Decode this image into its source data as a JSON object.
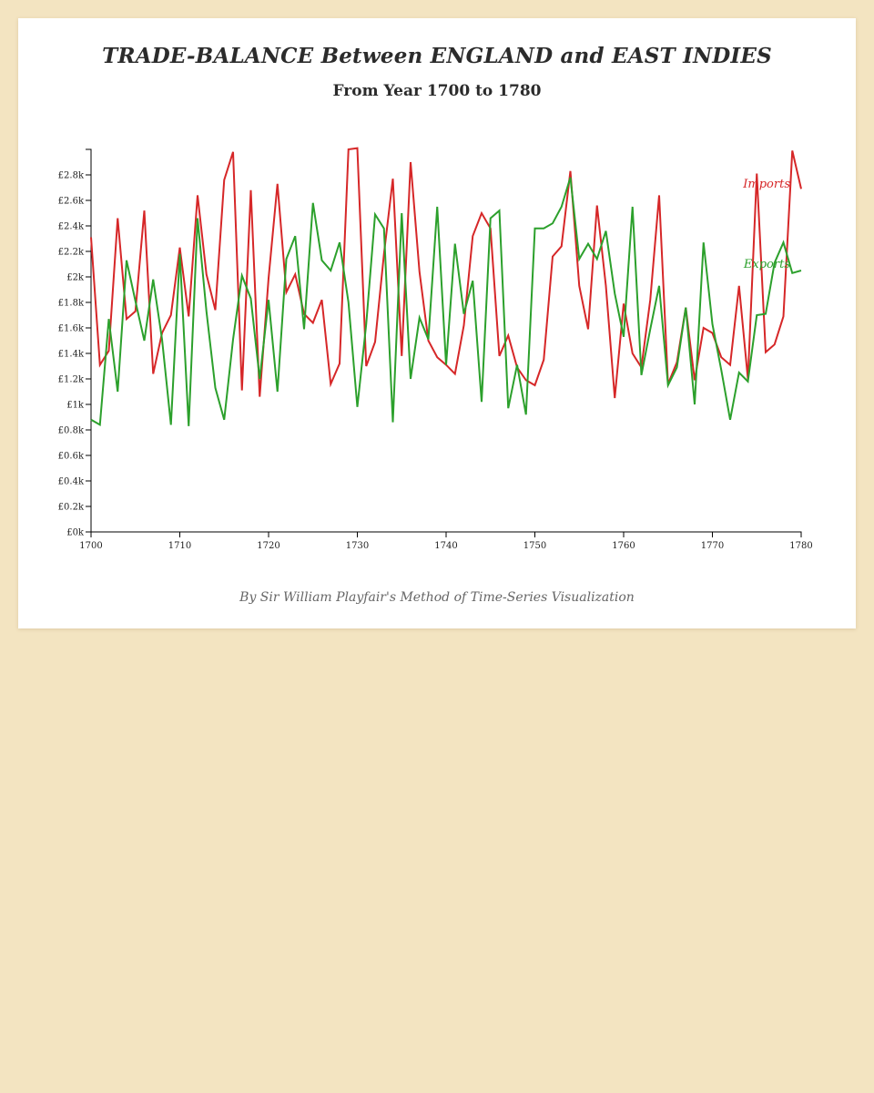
{
  "title": "TRADE-BALANCE Between ENGLAND and EAST INDIES",
  "subtitle": "From Year 1700 to 1780",
  "footer": "By Sir William Playfair's Method of Time-Series Visualization",
  "chart_data": {
    "type": "line",
    "title": "TRADE-BALANCE Between ENGLAND and EAST INDIES",
    "subtitle": "From Year 1700 to 1780",
    "xlim": [
      1700,
      1780
    ],
    "ylim": [
      0,
      3000
    ],
    "x_ticks": [
      "1700",
      "1710",
      "1720",
      "1730",
      "1740",
      "1750",
      "1760",
      "1770",
      "1780"
    ],
    "y_ticks": [
      "£0k",
      "£0.2k",
      "£0.4k",
      "£0.6k",
      "£0.8k",
      "£1k",
      "£1.2k",
      "£1.4k",
      "£1.6k",
      "£1.8k",
      "£2k",
      "£2.2k",
      "£2.4k",
      "£2.6k",
      "£2.8k"
    ],
    "grid": false,
    "legend": "inline labels at right end of lines",
    "series": [
      {
        "name": "Imports",
        "color": "#d62728",
        "x": [
          1700,
          1701,
          1702,
          1703,
          1704,
          1705,
          1706,
          1707,
          1708,
          1709,
          1710,
          1711,
          1712,
          1713,
          1714,
          1715,
          1716,
          1717,
          1718,
          1719,
          1720,
          1721,
          1722,
          1723,
          1724,
          1725,
          1726,
          1727,
          1728,
          1729,
          1730,
          1731,
          1732,
          1733,
          1734,
          1735,
          1736,
          1737,
          1738,
          1739,
          1740,
          1741,
          1742,
          1743,
          1744,
          1745,
          1746,
          1747,
          1748,
          1749,
          1750,
          1751,
          1752,
          1753,
          1754,
          1755,
          1756,
          1757,
          1758,
          1759,
          1760,
          1761,
          1762,
          1763,
          1764,
          1765,
          1766,
          1767,
          1768,
          1769,
          1770,
          1771,
          1772,
          1773,
          1774,
          1775,
          1776,
          1777,
          1778,
          1779,
          1780
        ],
        "values": [
          2310,
          1310,
          1420,
          2460,
          1670,
          1730,
          2520,
          1240,
          1560,
          1700,
          2230,
          1690,
          2640,
          2020,
          1740,
          2760,
          2980,
          1110,
          2680,
          1060,
          1990,
          2730,
          1880,
          2020,
          1710,
          1640,
          1820,
          1160,
          1320,
          3000,
          3010,
          1300,
          1490,
          2180,
          2770,
          1380,
          2900,
          2040,
          1500,
          1370,
          1310,
          1240,
          1620,
          2320,
          2500,
          2380,
          1380,
          1540,
          1290,
          1190,
          1150,
          1350,
          2160,
          2240,
          2830,
          1930,
          1590,
          2560,
          1930,
          1050,
          1790,
          1400,
          1290,
          1820,
          2640,
          1160,
          1330,
          1760,
          1190,
          1600,
          1560,
          1370,
          1310,
          1930,
          1200,
          2810,
          1410,
          1470,
          1690,
          2990,
          2690
        ]
      },
      {
        "name": "Exports",
        "color": "#2ca02c",
        "x": [
          1700,
          1701,
          1702,
          1703,
          1704,
          1705,
          1706,
          1707,
          1708,
          1709,
          1710,
          1711,
          1712,
          1713,
          1714,
          1715,
          1716,
          1717,
          1718,
          1719,
          1720,
          1721,
          1722,
          1723,
          1724,
          1725,
          1726,
          1727,
          1728,
          1729,
          1730,
          1731,
          1732,
          1733,
          1734,
          1735,
          1736,
          1737,
          1738,
          1739,
          1740,
          1741,
          1742,
          1743,
          1744,
          1745,
          1746,
          1747,
          1748,
          1749,
          1750,
          1751,
          1752,
          1753,
          1754,
          1755,
          1756,
          1757,
          1758,
          1759,
          1760,
          1761,
          1762,
          1763,
          1764,
          1765,
          1766,
          1767,
          1768,
          1769,
          1770,
          1771,
          1772,
          1773,
          1774,
          1775,
          1776,
          1777,
          1778,
          1779,
          1780
        ],
        "values": [
          880,
          840,
          1670,
          1100,
          2130,
          1810,
          1500,
          1980,
          1510,
          840,
          2180,
          830,
          2460,
          1730,
          1130,
          880,
          1510,
          2010,
          1830,
          1200,
          1820,
          1100,
          2140,
          2320,
          1590,
          2580,
          2130,
          2050,
          2270,
          1800,
          980,
          1630,
          2490,
          2380,
          860,
          2500,
          1200,
          1680,
          1510,
          2550,
          1310,
          2260,
          1710,
          1970,
          1020,
          2460,
          2520,
          970,
          1310,
          920,
          2380,
          2380,
          2420,
          2550,
          2780,
          2140,
          2260,
          2140,
          2360,
          1870,
          1530,
          2550,
          1230,
          1590,
          1930,
          1150,
          1290,
          1760,
          1000,
          2270,
          1630,
          1270,
          880,
          1250,
          1180,
          1700,
          1710,
          2110,
          2270,
          2030,
          2050
        ]
      }
    ]
  }
}
